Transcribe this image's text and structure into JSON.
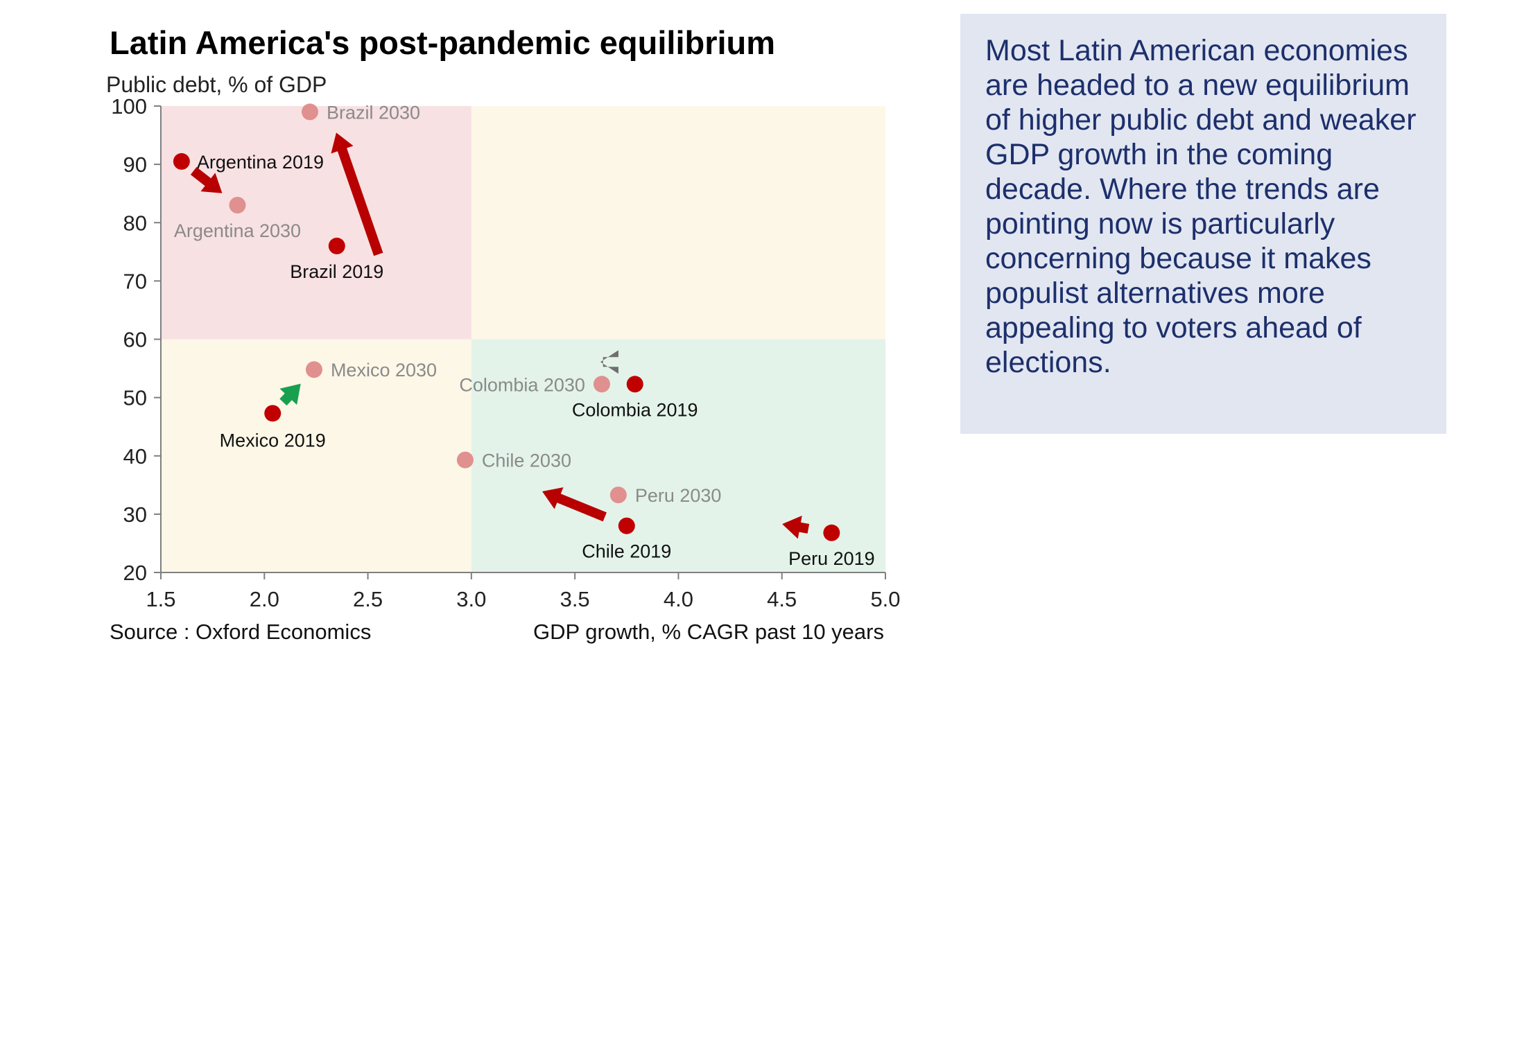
{
  "note": "Most Latin American economies are headed to a new equilibrium of higher public debt and weaker GDP growth in the coming decade. Where the trends are pointing now is particularly concerning because it makes populist alternatives more appealing to voters ahead of elections.",
  "chart_data": {
    "type": "scatter",
    "title": "Latin America's post-pandemic equilibrium",
    "xlabel": "GDP growth, % CAGR past 10 years",
    "ylabel": "Public debt, % of GDP",
    "source": "Source : Oxford Economics",
    "xlim": [
      1.5,
      5.0
    ],
    "ylim": [
      20,
      100
    ],
    "x_ticks": [
      "1.5",
      "2.0",
      "2.5",
      "3.0",
      "3.5",
      "4.0",
      "4.5",
      "5.0"
    ],
    "y_ticks": [
      "20",
      "30",
      "40",
      "50",
      "60",
      "70",
      "80",
      "90",
      "100"
    ],
    "colors": {
      "high_debt_low_growth": "#f8e1e3",
      "mixed": "#fdf7e7",
      "low_debt_high_growth": "#e3f3ea",
      "point_2019": "#c00000",
      "point_2030": "#e0908e",
      "arrow_worse": "#b90000",
      "arrow_better": "#18a050",
      "arrow_neutral": "#6f6f6f"
    },
    "quadrants": [
      {
        "name": "high debt, low growth",
        "x": [
          1.5,
          3.0
        ],
        "y": [
          60,
          100
        ],
        "color": "high_debt_low_growth"
      },
      {
        "name": "high debt, high growth",
        "x": [
          3.0,
          5.0
        ],
        "y": [
          60,
          100
        ],
        "color": "mixed"
      },
      {
        "name": "low debt, low growth",
        "x": [
          1.5,
          3.0
        ],
        "y": [
          20,
          60
        ],
        "color": "mixed"
      },
      {
        "name": "low debt, high growth",
        "x": [
          3.0,
          5.0
        ],
        "y": [
          20,
          60
        ],
        "color": "low_debt_high_growth"
      }
    ],
    "countries": [
      {
        "name": "Argentina",
        "x2019": 1.6,
        "y2019": 90.5,
        "x2030": 1.87,
        "y2030": 83,
        "arrow": "worse",
        "label2019": "Argentina 2019",
        "label2030": "Argentina 2030"
      },
      {
        "name": "Brazil",
        "x2019": 2.35,
        "y2019": 76,
        "x2030": 2.22,
        "y2030": 99,
        "arrow": "worse",
        "label2019": "Brazil 2019",
        "label2030": "Brazil 2030"
      },
      {
        "name": "Mexico",
        "x2019": 2.04,
        "y2019": 47.3,
        "x2030": 2.24,
        "y2030": 54.8,
        "arrow": "better",
        "label2019": "Mexico 2019",
        "label2030": "Mexico 2030"
      },
      {
        "name": "Colombia",
        "x2019": 3.79,
        "y2019": 52.3,
        "x2030": 3.63,
        "y2030": 52.3,
        "arrow": "neutral",
        "label2019": "Colombia 2019",
        "label2030": "Colombia 2030"
      },
      {
        "name": "Chile",
        "x2019": 3.75,
        "y2019": 28,
        "x2030": 2.97,
        "y2030": 39.3,
        "arrow": "worse",
        "label2019": "Chile 2019",
        "label2030": "Chile 2030"
      },
      {
        "name": "Peru",
        "x2019": 4.74,
        "y2019": 26.8,
        "x2030": 3.71,
        "y2030": 33.3,
        "arrow": "worse",
        "label2019": "Peru 2019",
        "label2030": "Peru 2030"
      }
    ]
  }
}
